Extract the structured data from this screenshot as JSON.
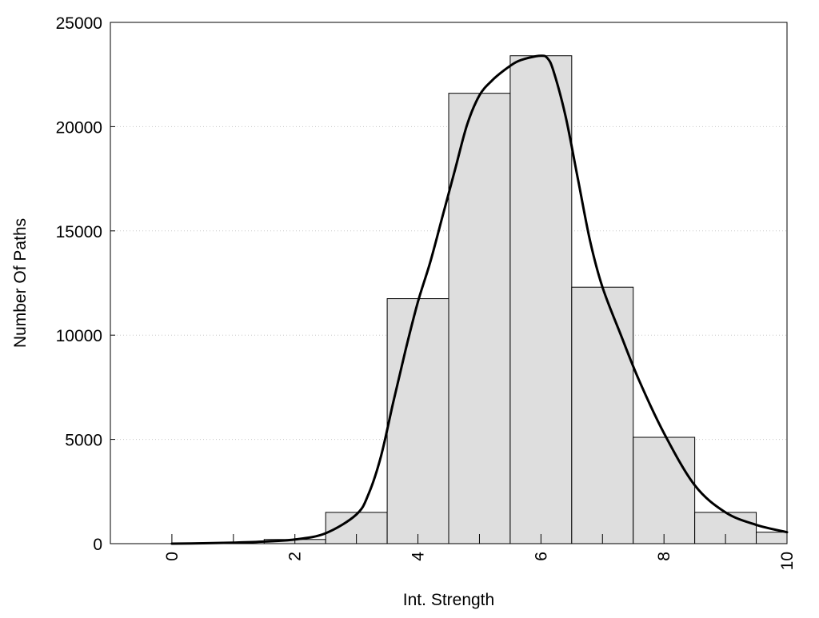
{
  "chart_data": {
    "type": "bar",
    "title": "",
    "xlabel": "Int. Strength",
    "ylabel": "Number Of Paths",
    "xlim": [
      -1,
      10
    ],
    "ylim": [
      0,
      25000
    ],
    "x_ticks": [
      "0",
      "2",
      "4",
      "6",
      "8",
      "10"
    ],
    "y_ticks": [
      "0",
      "5000",
      "10000",
      "15000",
      "20000",
      "25000"
    ],
    "grid": "horizontal-dotted",
    "legend": "none",
    "bar_color": "#dedede",
    "bar_edge_color": "#000000",
    "bins": [
      {
        "x": 0,
        "value": 0
      },
      {
        "x": 1,
        "value": 0
      },
      {
        "x": 2,
        "value": 200
      },
      {
        "x": 3,
        "value": 1500
      },
      {
        "x": 4,
        "value": 11750
      },
      {
        "x": 5,
        "value": 21600
      },
      {
        "x": 6,
        "value": 23400
      },
      {
        "x": 7,
        "value": 12300
      },
      {
        "x": 8,
        "value": 5100
      },
      {
        "x": 9,
        "value": 1500
      },
      {
        "x": 10,
        "value": 550
      }
    ],
    "curve": {
      "color": "#000000",
      "points": [
        [
          0,
          0
        ],
        [
          0.5,
          20
        ],
        [
          1,
          50
        ],
        [
          1.5,
          100
        ],
        [
          2,
          200
        ],
        [
          2.5,
          500
        ],
        [
          3,
          1400
        ],
        [
          3.2,
          2400
        ],
        [
          3.4,
          4200
        ],
        [
          3.6,
          6800
        ],
        [
          3.8,
          9300
        ],
        [
          4,
          11600
        ],
        [
          4.2,
          13500
        ],
        [
          4.4,
          15700
        ],
        [
          4.6,
          17900
        ],
        [
          4.8,
          20100
        ],
        [
          5,
          21500
        ],
        [
          5.2,
          22200
        ],
        [
          5.4,
          22700
        ],
        [
          5.6,
          23100
        ],
        [
          5.8,
          23300
        ],
        [
          6,
          23400
        ],
        [
          6.1,
          23300
        ],
        [
          6.2,
          22700
        ],
        [
          6.4,
          20500
        ],
        [
          6.6,
          17500
        ],
        [
          6.8,
          14500
        ],
        [
          7,
          12300
        ],
        [
          7.3,
          10000
        ],
        [
          7.6,
          7800
        ],
        [
          8,
          5300
        ],
        [
          8.5,
          2800
        ],
        [
          9,
          1500
        ],
        [
          9.5,
          900
        ],
        [
          10,
          550
        ]
      ]
    }
  }
}
